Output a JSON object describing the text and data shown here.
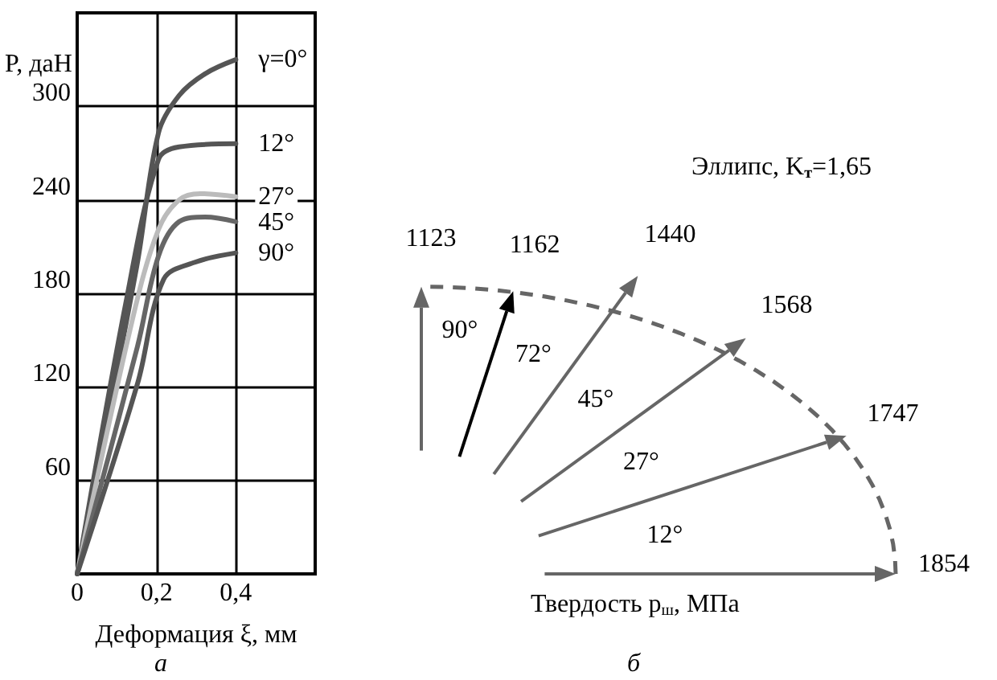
{
  "chart_data": [
    {
      "type": "line",
      "ylabel": "P, даН",
      "xlabel": "Деформация ξ, мм",
      "xlim": [
        0,
        0.6
      ],
      "xticks": [
        0,
        {
          "value": 0.2,
          "label": "0,2"
        },
        {
          "value": 0.4,
          "label": "0,4"
        }
      ],
      "ylim": [
        0,
        360
      ],
      "yticks": [
        60,
        120,
        180,
        240,
        300
      ],
      "grid": true,
      "annotations": [
        "а"
      ],
      "series": [
        {
          "name": "γ=0°",
          "color": "#555555",
          "x": [
            0,
            0.15,
            0.205,
            0.257,
            0.323,
            0.4
          ],
          "values": [
            0,
            197,
            283,
            307,
            321,
            330
          ]
        },
        {
          "name": "12°",
          "color": "#555555",
          "x": [
            0,
            0.125,
            0.205,
            0.257,
            0.4
          ],
          "values": [
            0,
            177,
            266,
            274,
            276
          ]
        },
        {
          "name": "27°",
          "color": "#bbbbbb",
          "x": [
            0,
            0.139,
            0.205,
            0.257,
            0.31,
            0.4
          ],
          "values": [
            0,
            163,
            221,
            240,
            244,
            242
          ]
        },
        {
          "name": "45°",
          "color": "#666666",
          "x": [
            0,
            0.152,
            0.205,
            0.257,
            0.323,
            0.4
          ],
          "values": [
            0,
            146,
            204,
            226,
            229,
            226
          ]
        },
        {
          "name": "90°",
          "color": "#555555",
          "x": [
            0,
            0.152,
            0.218,
            0.297,
            0.4
          ],
          "values": [
            0,
            122,
            189,
            200,
            206
          ]
        }
      ]
    },
    {
      "type": "other",
      "title": "Эллипс, K$_{т}$=1,65",
      "xlabel": "Твердость p$_{ш}$, МПа",
      "categories": [
        "90°",
        "72°",
        "45°",
        "27°",
        "12°",
        null
      ],
      "data_labels": true,
      "values": [
        1123,
        1162,
        1440,
        1568,
        1747,
        1854
      ],
      "colors": [
        "#666666",
        "#000000",
        "#666666",
        "#666666",
        "#666666",
        "#666666"
      ],
      "annotations": [
        "б"
      ]
    }
  ]
}
